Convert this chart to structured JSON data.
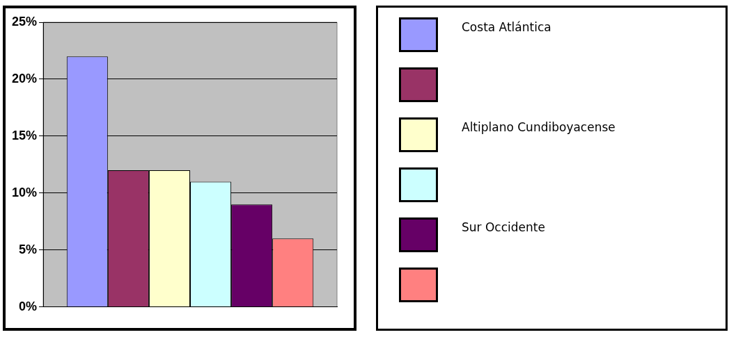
{
  "chart_data": {
    "type": "bar",
    "categories": [
      null
    ],
    "series": [
      {
        "name": "Costa Atlántica",
        "color": "#9999ff",
        "values": [
          22
        ]
      },
      {
        "color": "#993366",
        "values": [
          12
        ]
      },
      {
        "name": "Altiplano Cundiboyacense",
        "color": "#ffffcc",
        "values": [
          12
        ]
      },
      {
        "color": "#ccffff",
        "values": [
          11
        ]
      },
      {
        "name": "Sur Occidente",
        "color": "#660066",
        "values": [
          9
        ]
      },
      {
        "color": "#ff8080",
        "values": [
          6
        ]
      }
    ],
    "ylim": [
      0,
      25
    ],
    "yticks": [
      {
        "value": 0,
        "label": "0%"
      },
      {
        "value": 5,
        "label": "5%"
      },
      {
        "value": 10,
        "label": "10%"
      },
      {
        "value": 15,
        "label": "15%"
      },
      {
        "value": 20,
        "label": "20%"
      },
      {
        "value": 25,
        "label": "25%"
      }
    ],
    "grid": "y",
    "legend": "right"
  }
}
